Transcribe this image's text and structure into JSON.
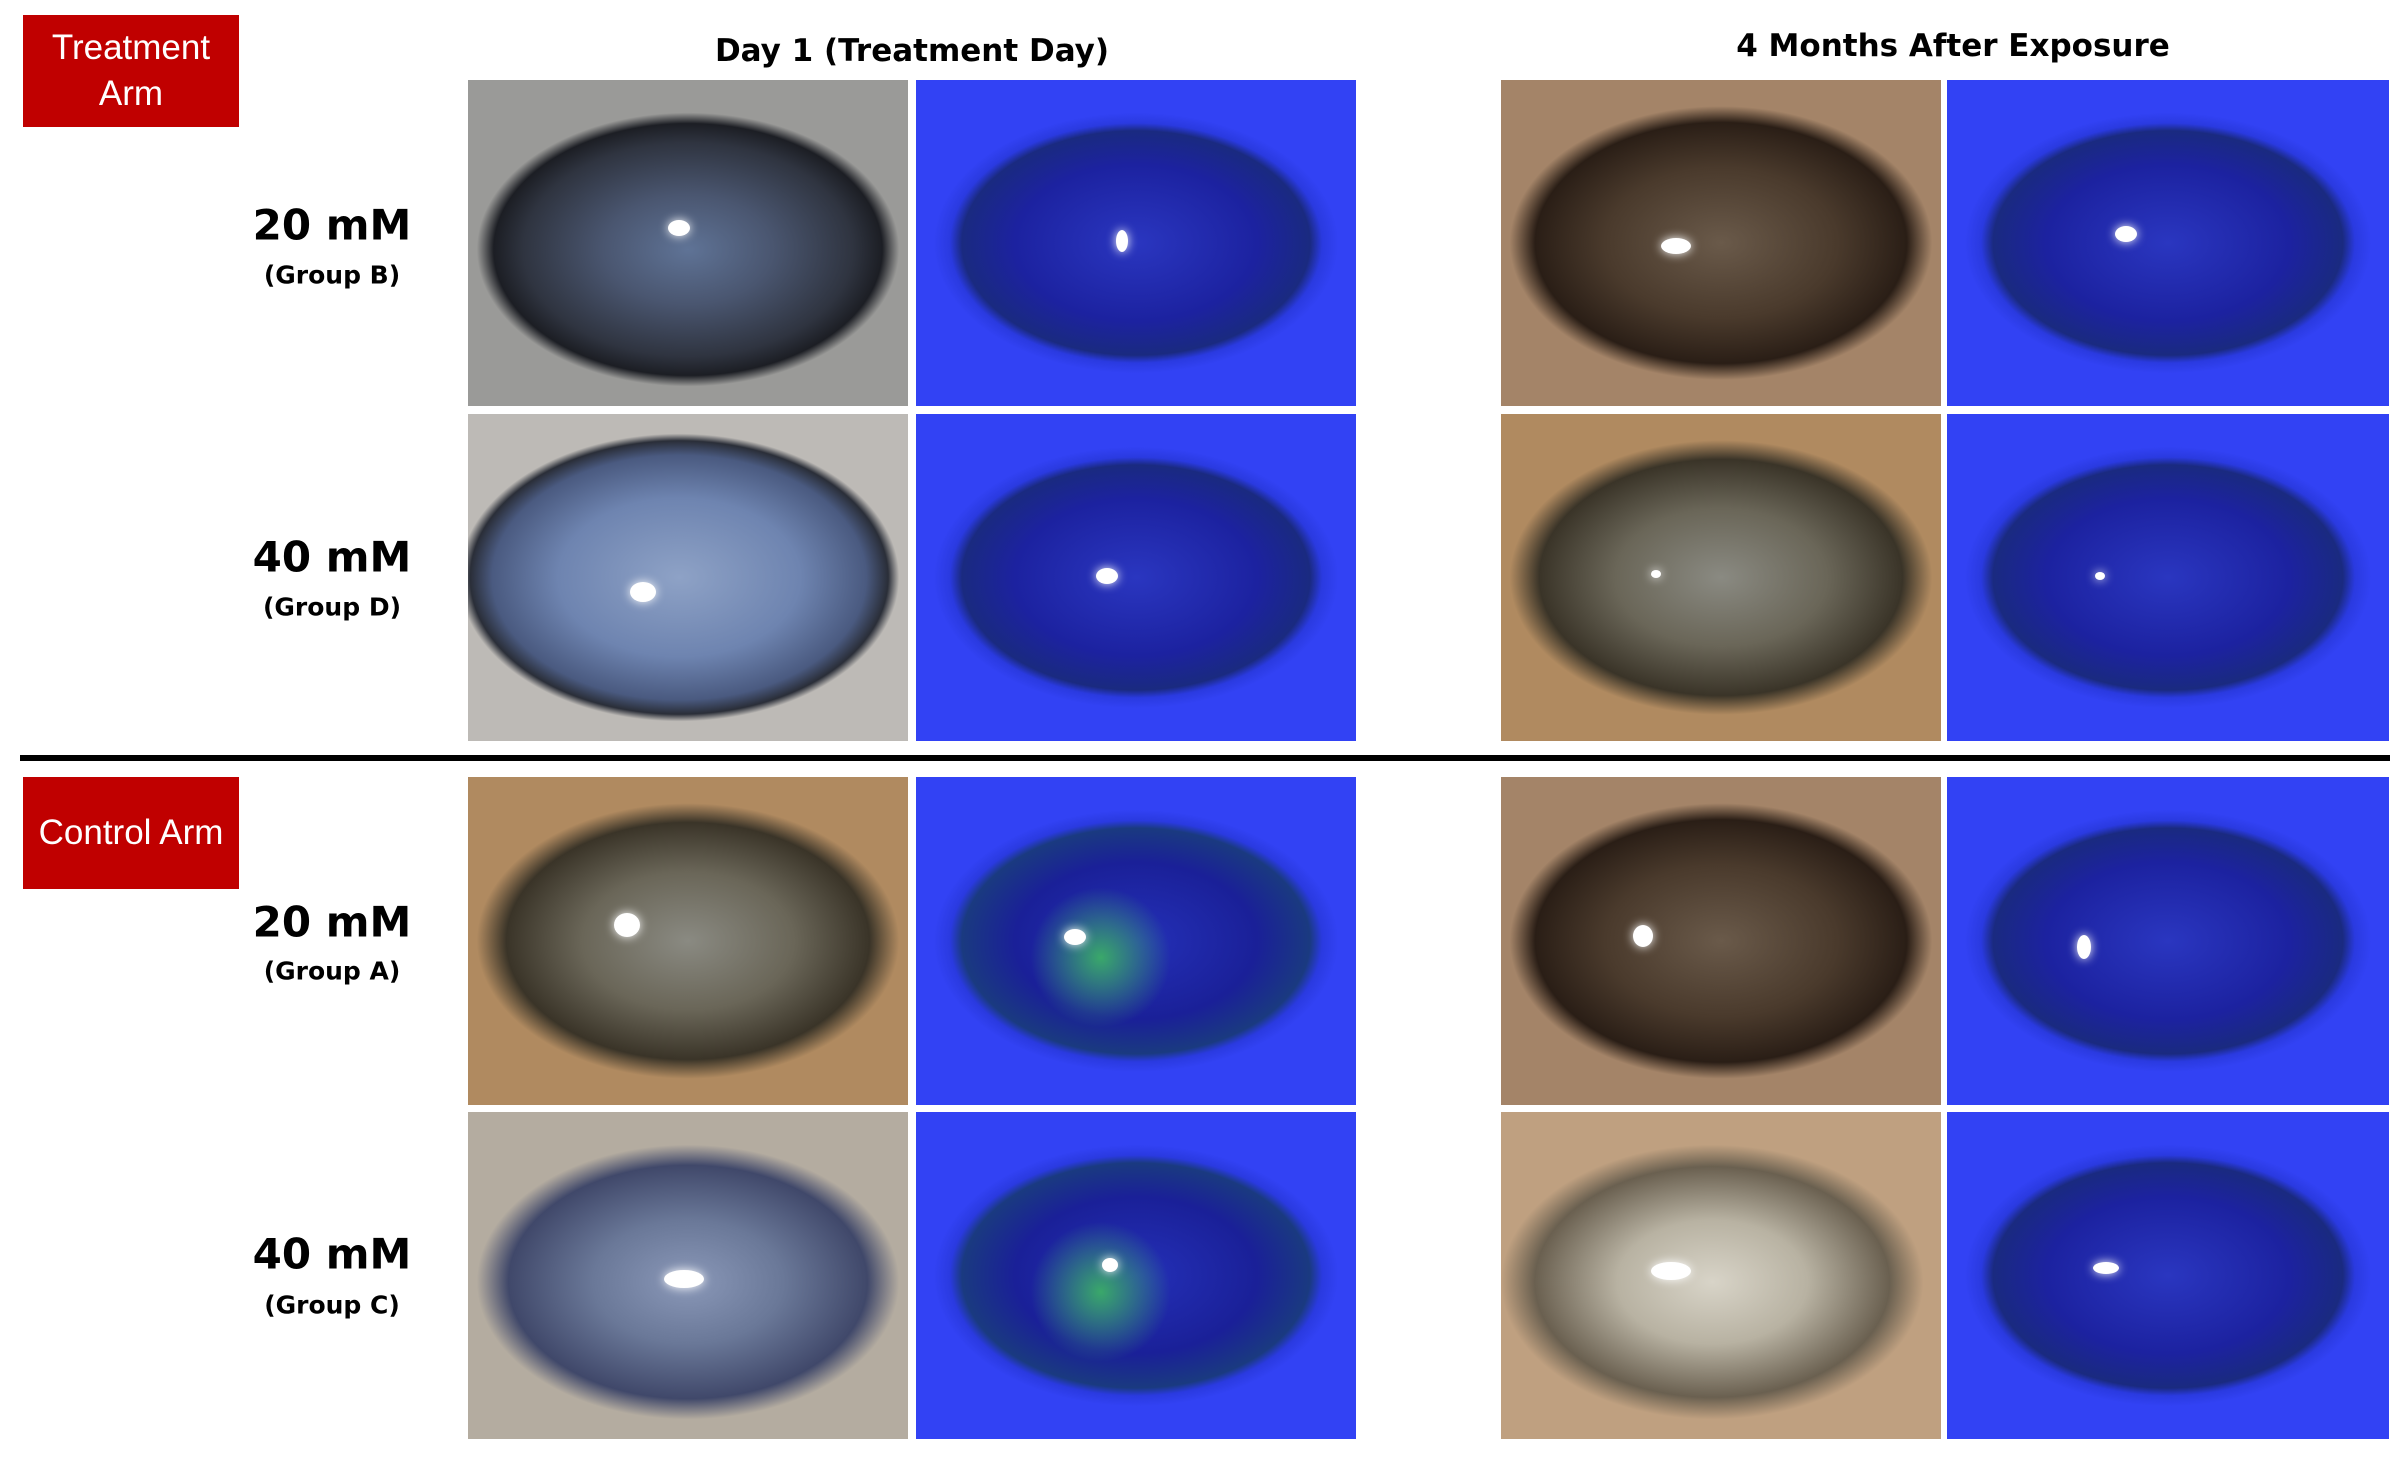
{
  "columns": [
    "Day 1 (Treatment Day)",
    "4 Months After Exposure"
  ],
  "arms": [
    {
      "label": "Treatment Arm",
      "rows": [
        {
          "concentration": "20 mM",
          "group": "(Group B)"
        },
        {
          "concentration": "40 mM",
          "group": "(Group D)"
        }
      ]
    },
    {
      "label": "Control Arm",
      "rows": [
        {
          "concentration": "20 mM",
          "group": "(Group A)"
        },
        {
          "concentration": "40 mM",
          "group": "(Group C)"
        }
      ]
    }
  ]
}
